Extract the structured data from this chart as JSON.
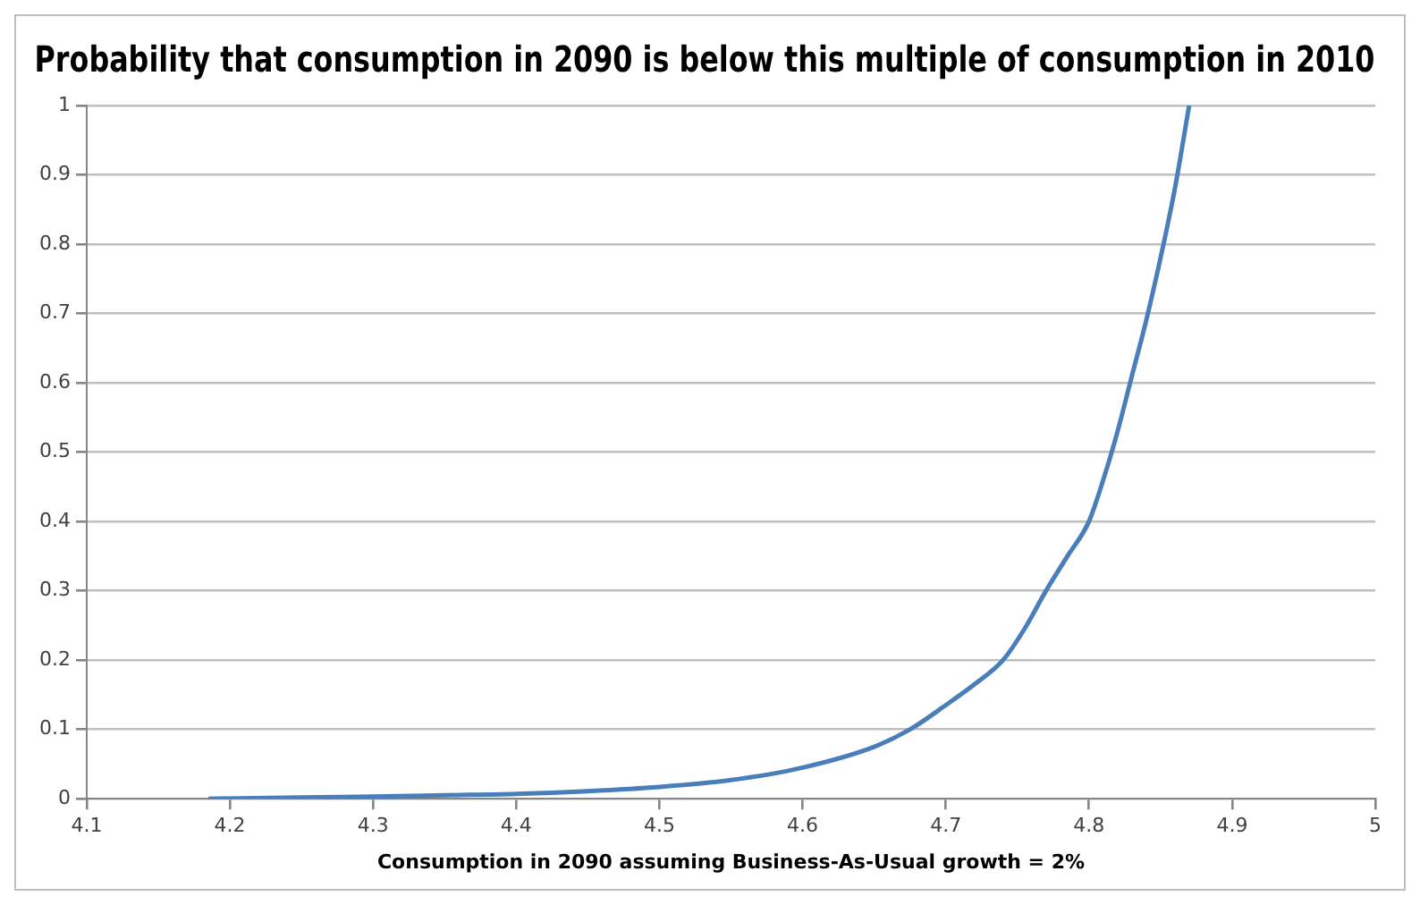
{
  "chart_data": {
    "type": "line",
    "title": "Probability that consumption in 2090 is below this multiple of consumption in 2010",
    "xlabel": "Consumption in 2090 assuming Business-As-Usual growth = 2%",
    "series": [
      {
        "color": "#4a7ebb",
        "x": [
          4.185,
          4.25,
          4.3,
          4.35,
          4.4,
          4.45,
          4.5,
          4.55,
          4.6,
          4.65,
          4.675,
          4.7,
          4.72,
          4.74,
          4.755,
          4.77,
          4.785,
          4.8,
          4.81,
          4.82,
          4.83,
          4.84,
          4.85,
          4.86,
          4.87
        ],
        "values": [
          0,
          0.002,
          0.003,
          0.005,
          0.007,
          0.011,
          0.017,
          0.027,
          0.045,
          0.075,
          0.1,
          0.135,
          0.165,
          0.2,
          0.245,
          0.3,
          0.35,
          0.4,
          0.46,
          0.53,
          0.61,
          0.69,
          0.78,
          0.88,
          1
        ]
      }
    ],
    "xlim": [
      4.1,
      5
    ],
    "xticks": [
      4.1,
      4.2,
      4.3,
      4.4,
      4.5,
      4.6,
      4.7,
      4.8,
      4.9,
      5
    ],
    "ylim": [
      0,
      1
    ],
    "yticks": [
      0,
      0.1,
      0.2,
      0.3,
      0.4,
      0.5,
      0.6,
      0.7,
      0.8,
      0.9,
      1
    ],
    "grid": "y",
    "legend": false,
    "marker": "none",
    "line_style": "solid"
  }
}
